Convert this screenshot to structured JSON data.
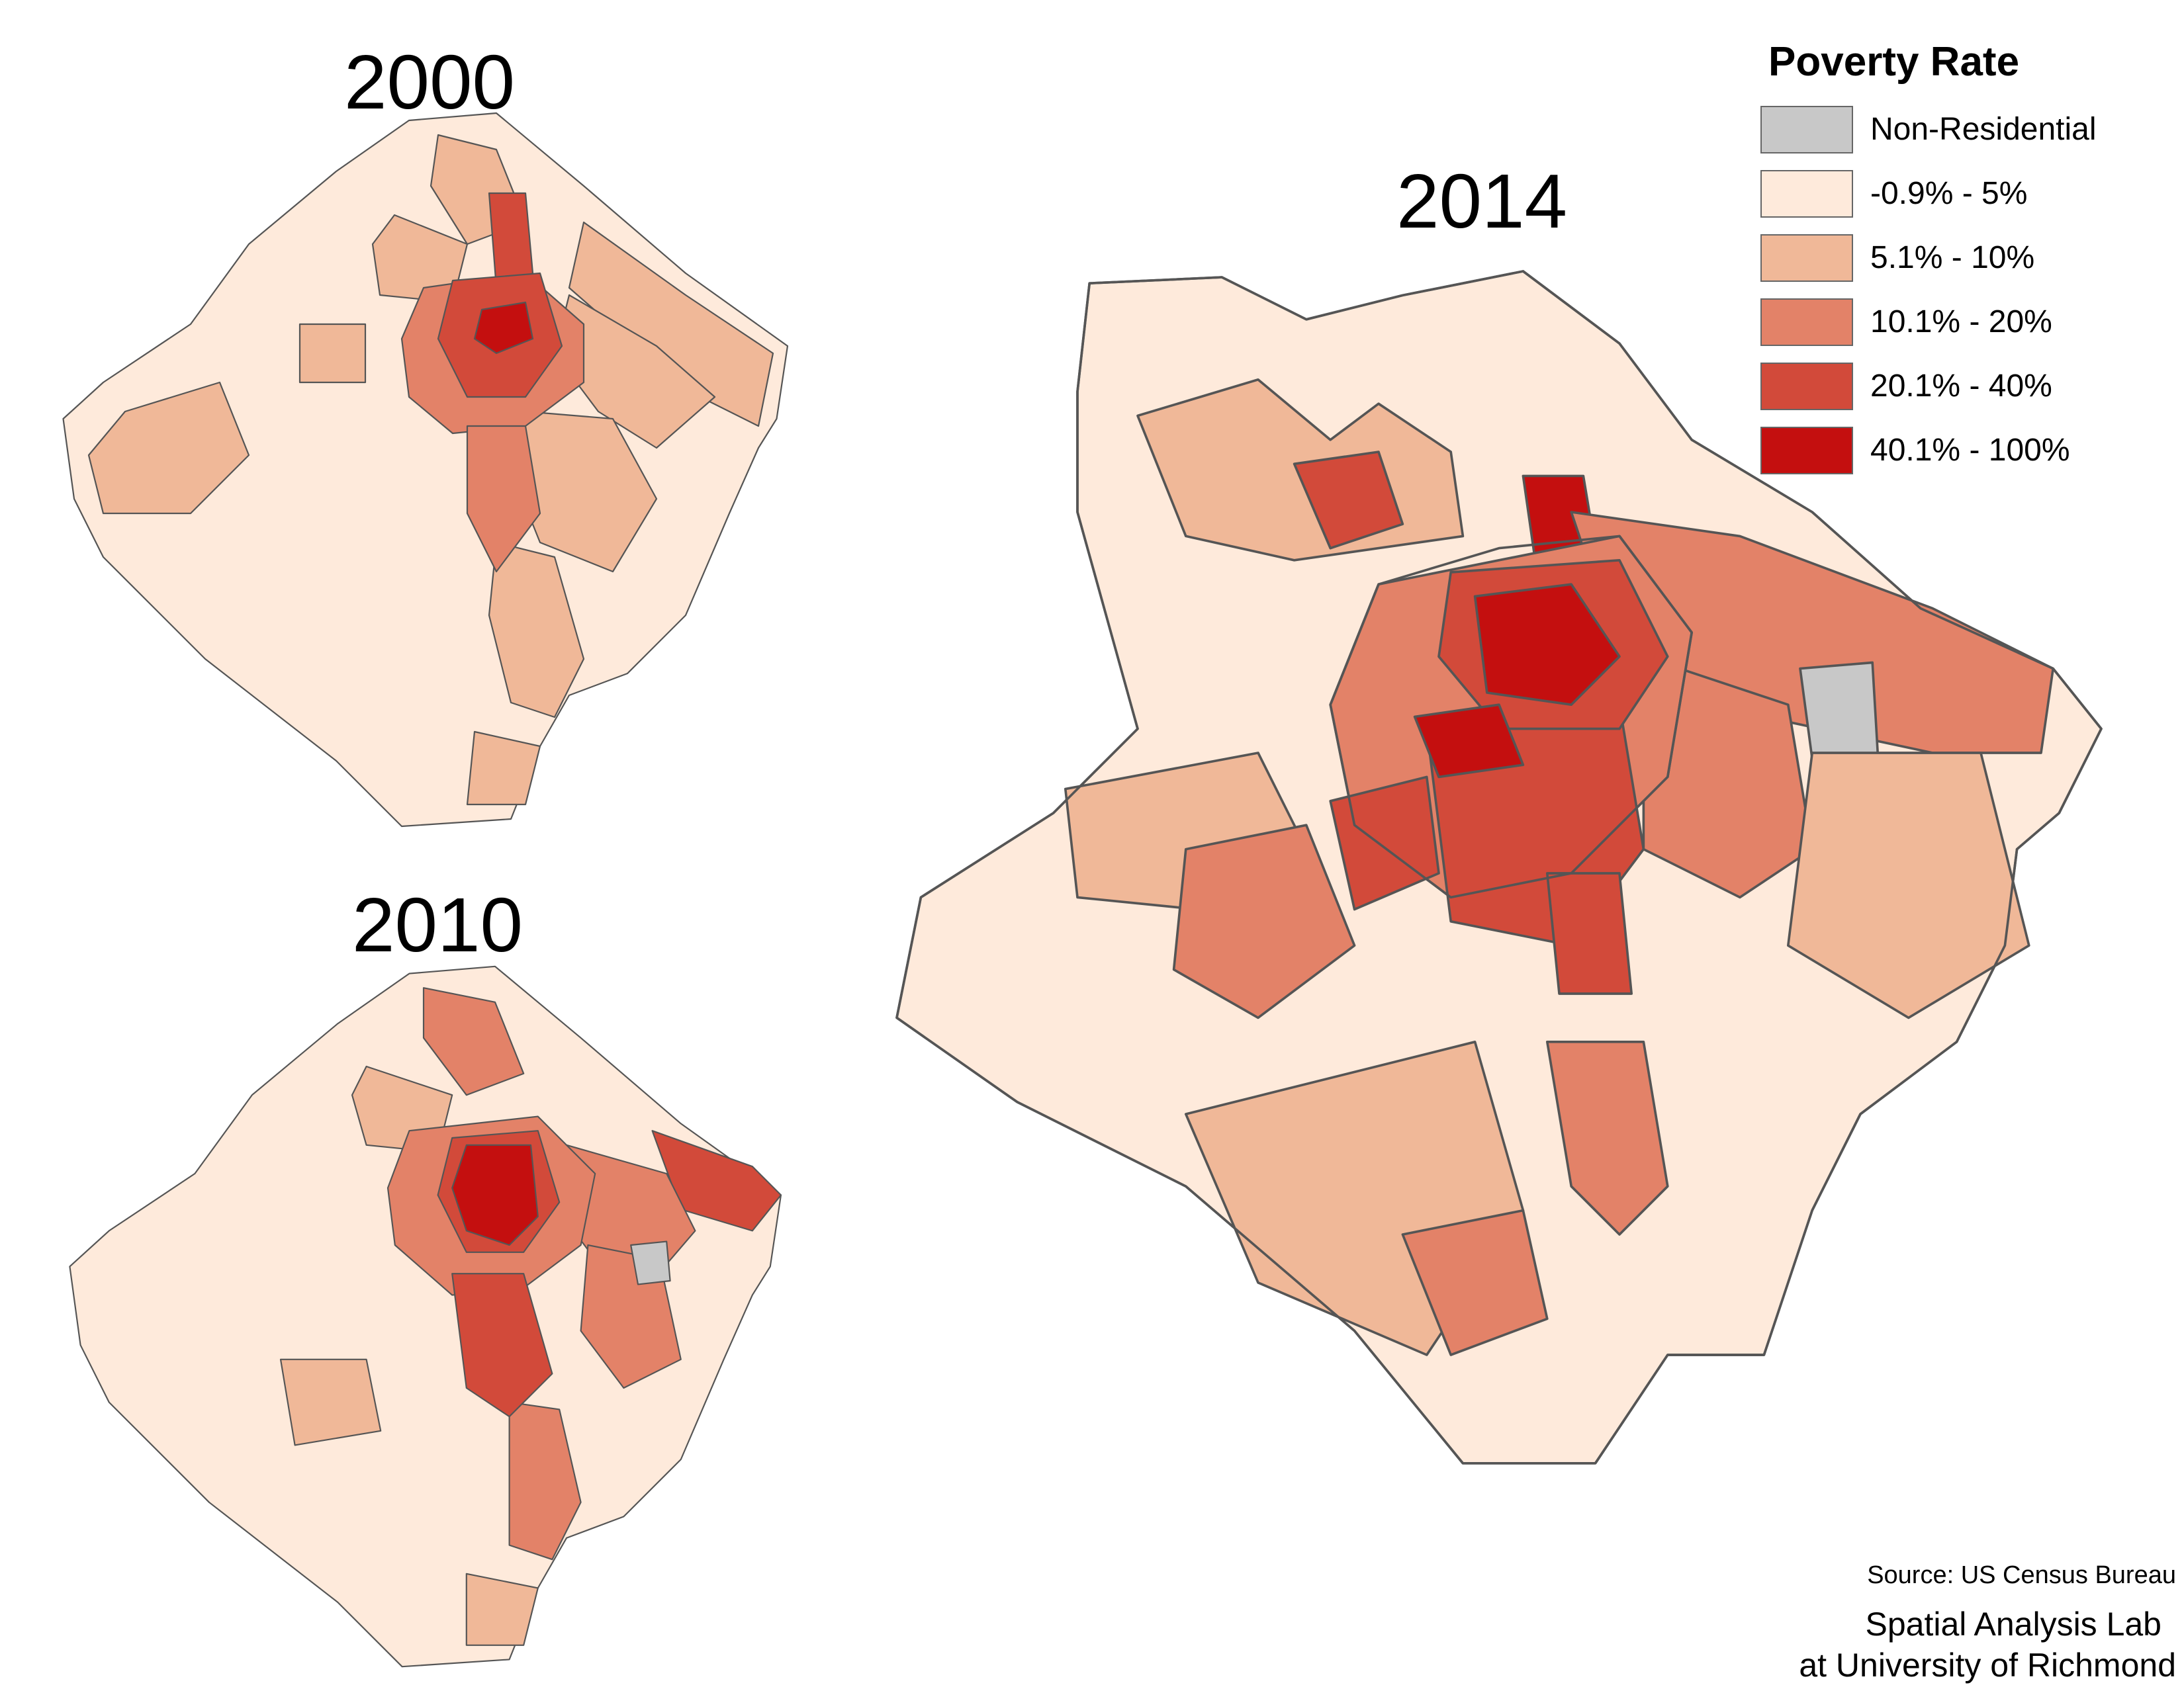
{
  "titles": {
    "y2000": "2000",
    "y2010": "2010",
    "y2014": "2014"
  },
  "legend": {
    "title": "Poverty Rate",
    "items": [
      {
        "label": "Non-Residential",
        "color": "#c8c8c8"
      },
      {
        "label": "-0.9% - 5%",
        "color": "#feeadb"
      },
      {
        "label": "5.1% - 10%",
        "color": "#f0b898"
      },
      {
        "label": "10.1% - 20%",
        "color": "#e38268"
      },
      {
        "label": "20.1% - 40%",
        "color": "#d24a3a"
      },
      {
        "label": "40.1% - 100%",
        "color": "#c40f0f"
      }
    ]
  },
  "credits": {
    "source": "Source: US Census Bureau",
    "lab_line1": "Spatial Analysis Lab",
    "lab_line2": "at University of Richmond"
  }
}
